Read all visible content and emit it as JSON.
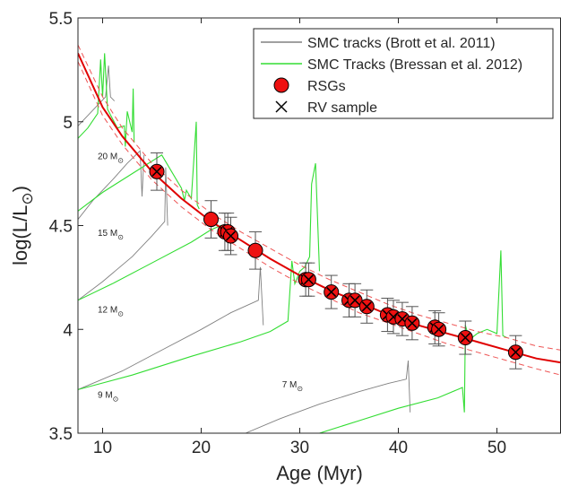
{
  "chart_data": {
    "type": "line",
    "title": "",
    "xlabel": "Age (Myr)",
    "ylabel_main": "log(L/L",
    "ylabel_sub": "⊙",
    "ylabel_close": ")",
    "xlim": [
      7.5,
      56.5
    ],
    "ylim": [
      3.5,
      5.5
    ],
    "xticks": [
      10,
      20,
      30,
      40,
      50
    ],
    "yticks": [
      3.5,
      4,
      4.5,
      5,
      5.5
    ],
    "ytick_labels": [
      "3.5",
      "4",
      "4.5",
      "5",
      "5.5"
    ],
    "grid": false,
    "legend_position": "top-right",
    "legend": [
      {
        "label": "SMC tracks (Brott et al. 2011)",
        "marker": "gray-line",
        "color": "#808080"
      },
      {
        "label": "SMC Tracks (Bressan et al. 2012)",
        "marker": "green-line",
        "color": "#33dd33"
      },
      {
        "label": "RSGs",
        "marker": "red-circle",
        "color": "#ee1111"
      },
      {
        "label": "RV sample",
        "marker": "x",
        "color": "#000000"
      }
    ],
    "mass_labels": [
      {
        "mass": "20 M",
        "sub": "⊙",
        "x": 9.5,
        "y": 4.82
      },
      {
        "mass": "15 M",
        "sub": "⊙",
        "x": 9.5,
        "y": 4.45
      },
      {
        "mass": "12 M",
        "sub": "⊙",
        "x": 9.5,
        "y": 4.08
      },
      {
        "mass": "9 M",
        "sub": "⊙",
        "x": 9.5,
        "y": 3.67
      },
      {
        "mass": "7 M",
        "sub": "⊙",
        "x": 28.2,
        "y": 3.72
      }
    ],
    "fit_curve": {
      "name": "",
      "color": "#e00000",
      "x": [
        7.5,
        10,
        12,
        15,
        18,
        21,
        24,
        27,
        30,
        33,
        36,
        39,
        42,
        45,
        48,
        51,
        54,
        56.5
      ],
      "y": [
        5.33,
        5.07,
        4.93,
        4.76,
        4.63,
        4.52,
        4.43,
        4.34,
        4.26,
        4.19,
        4.13,
        4.07,
        4.02,
        3.98,
        3.94,
        3.9,
        3.86,
        3.84
      ]
    },
    "fit_upper": {
      "x": [
        7.5,
        10,
        12,
        15,
        18,
        21,
        24,
        27,
        30,
        33,
        36,
        39,
        42,
        45,
        48,
        51,
        54,
        56.5
      ],
      "y": [
        5.37,
        5.12,
        4.97,
        4.8,
        4.67,
        4.56,
        4.47,
        4.39,
        4.31,
        4.24,
        4.18,
        4.12,
        4.07,
        4.03,
        3.99,
        3.96,
        3.92,
        3.9
      ]
    },
    "fit_lower": {
      "x": [
        7.5,
        10,
        12,
        15,
        18,
        21,
        24,
        27,
        30,
        33,
        36,
        39,
        42,
        45,
        48,
        51,
        54,
        56.5
      ],
      "y": [
        5.29,
        5.03,
        4.89,
        4.72,
        4.59,
        4.48,
        4.39,
        4.3,
        4.22,
        4.15,
        4.08,
        4.03,
        3.98,
        3.93,
        3.89,
        3.85,
        3.81,
        3.78
      ]
    },
    "brott_tracks": [
      {
        "x": [
          7.5,
          8.5,
          9.5,
          10.3,
          10.6,
          10.8,
          11.2
        ],
        "y": [
          4.98,
          5.03,
          5.08,
          5.12,
          5.27,
          5.12,
          5.1
        ]
      },
      {
        "x": [
          7.5,
          9,
          11,
          12.5,
          13.8,
          14,
          14.2
        ],
        "y": [
          4.53,
          4.62,
          4.72,
          4.8,
          4.86,
          4.64,
          4.84
        ]
      },
      {
        "x": [
          7.5,
          10,
          13,
          15,
          16.3,
          16.4,
          16.6
        ],
        "y": [
          4.14,
          4.23,
          4.35,
          4.45,
          4.52,
          4.78,
          4.5
        ]
      },
      {
        "x": [
          7.5,
          12,
          16,
          20,
          23,
          25.8,
          26,
          26.3
        ],
        "y": [
          3.71,
          3.8,
          3.9,
          4.0,
          4.08,
          4.14,
          4.3,
          4.02
        ]
      },
      {
        "x": [
          24.5,
          28,
          32,
          36,
          39,
          40.8,
          41,
          41.2
        ],
        "y": [
          3.5,
          3.57,
          3.64,
          3.7,
          3.74,
          3.76,
          3.85,
          3.6
        ]
      }
    ],
    "bressan_tracks": [
      {
        "x": [
          7.5,
          8.5,
          9.5,
          9.8,
          10,
          10.2,
          10.5,
          11.5,
          12.2,
          12.3,
          12.5,
          13,
          13.1,
          13.2
        ],
        "y": [
          4.92,
          4.97,
          5.04,
          5.3,
          5.12,
          5.33,
          5.06,
          4.97,
          4.98,
          4.88,
          5.05,
          4.95,
          5.16,
          4.9
        ]
      },
      {
        "x": [
          7.5,
          10,
          13,
          16,
          18,
          18.3,
          18.5,
          19,
          19.5,
          19.6,
          19.8
        ],
        "y": [
          4.57,
          4.66,
          4.75,
          4.84,
          4.68,
          4.62,
          4.67,
          4.63,
          5.0,
          4.6,
          4.58
        ]
      },
      {
        "x": [
          7.5,
          11,
          15,
          19,
          21,
          22,
          22.2
        ],
        "y": [
          4.14,
          4.22,
          4.32,
          4.42,
          4.48,
          4.5,
          4.47
        ]
      },
      {
        "x": [
          7.5,
          13,
          19,
          24,
          27,
          28.8,
          29.2,
          29.5,
          30,
          30.5,
          31,
          31.2,
          31.6,
          32
        ],
        "y": [
          3.71,
          3.78,
          3.87,
          3.94,
          3.99,
          4.04,
          4.33,
          4.22,
          4.28,
          4.3,
          4.35,
          4.7,
          4.8,
          4.28
        ]
      },
      {
        "x": [
          32,
          36,
          40,
          44,
          46.5,
          46.7,
          46.8,
          47.2,
          48,
          49,
          50,
          50.4,
          50.6,
          51
        ],
        "y": [
          3.5,
          3.56,
          3.62,
          3.67,
          3.72,
          3.6,
          4.02,
          3.95,
          3.98,
          4.0,
          3.98,
          4.38,
          3.97,
          3.96
        ]
      }
    ],
    "points": [
      {
        "x": 15.5,
        "y": 4.76,
        "err": 0.09,
        "rv": true
      },
      {
        "x": 21.0,
        "y": 4.53,
        "err": 0.09,
        "rv": false
      },
      {
        "x": 22.4,
        "y": 4.47,
        "err": 0.09,
        "rv": true
      },
      {
        "x": 22.7,
        "y": 4.47,
        "err": 0.09,
        "rv": true
      },
      {
        "x": 23.0,
        "y": 4.45,
        "err": 0.09,
        "rv": true
      },
      {
        "x": 25.5,
        "y": 4.38,
        "err": 0.09,
        "rv": false
      },
      {
        "x": 30.6,
        "y": 4.24,
        "err": 0.08,
        "rv": true
      },
      {
        "x": 30.9,
        "y": 4.24,
        "err": 0.08,
        "rv": true
      },
      {
        "x": 33.2,
        "y": 4.18,
        "err": 0.08,
        "rv": true
      },
      {
        "x": 35.0,
        "y": 4.14,
        "err": 0.08,
        "rv": true
      },
      {
        "x": 35.6,
        "y": 4.14,
        "err": 0.08,
        "rv": true
      },
      {
        "x": 36.8,
        "y": 4.11,
        "err": 0.08,
        "rv": true
      },
      {
        "x": 38.9,
        "y": 4.07,
        "err": 0.08,
        "rv": true
      },
      {
        "x": 39.5,
        "y": 4.06,
        "err": 0.08,
        "rv": true
      },
      {
        "x": 40.4,
        "y": 4.05,
        "err": 0.08,
        "rv": true
      },
      {
        "x": 41.4,
        "y": 4.03,
        "err": 0.08,
        "rv": true
      },
      {
        "x": 43.7,
        "y": 4.01,
        "err": 0.08,
        "rv": true
      },
      {
        "x": 44.1,
        "y": 4.0,
        "err": 0.08,
        "rv": true
      },
      {
        "x": 46.8,
        "y": 3.96,
        "err": 0.08,
        "rv": true
      },
      {
        "x": 51.9,
        "y": 3.89,
        "err": 0.08,
        "rv": true
      }
    ]
  }
}
